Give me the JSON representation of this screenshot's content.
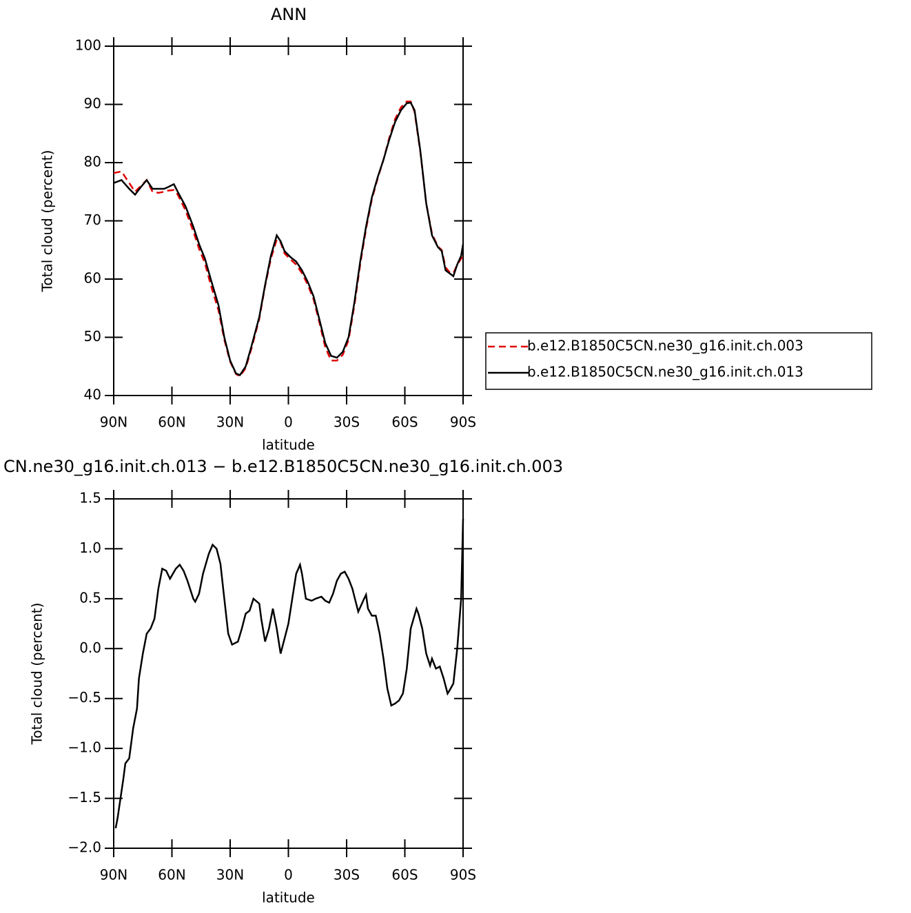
{
  "chart_data": [
    {
      "type": "line",
      "title": "ANN",
      "xlabel": "latitude",
      "ylabel": "Total cloud (percent)",
      "x": [
        90,
        86,
        82,
        79,
        76,
        73,
        70,
        67,
        64,
        62,
        59,
        57,
        53,
        49,
        46,
        43,
        40,
        36,
        33,
        30,
        27,
        25,
        22,
        19,
        15,
        12,
        9,
        6,
        4,
        2,
        -1,
        -4,
        -7,
        -10,
        -13,
        -16,
        -19,
        -22,
        -25,
        -28,
        -31,
        -34,
        -37,
        -40,
        -43,
        -46,
        -49,
        -52,
        -55,
        -58,
        -61,
        -63,
        -65,
        -68,
        -71,
        -74,
        -77,
        -79,
        -81,
        -83,
        -85,
        -87,
        -89,
        -90
      ],
      "series": [
        {
          "name": "b.e12.B1850C5CN.ne30_g16.init.ch.003",
          "color": "#e00000",
          "dash": true,
          "values": [
            78.2,
            78.5,
            76.5,
            75,
            76,
            77,
            75,
            74.8,
            75,
            75.2,
            75.3,
            74.5,
            71.8,
            68.2,
            65.2,
            62.7,
            59,
            54.6,
            49.6,
            45.8,
            43.7,
            43.3,
            44.7,
            48.1,
            53.2,
            58.8,
            63.5,
            66.8,
            66.3,
            64.4,
            63.4,
            62.5,
            61,
            59,
            56.5,
            52.5,
            48.3,
            46,
            46,
            47,
            49.5,
            55.5,
            62.5,
            68.6,
            73.7,
            77.3,
            80.5,
            84.3,
            87.5,
            89.5,
            90.5,
            90.5,
            88.7,
            81.8,
            73,
            67.8,
            65.6,
            65,
            62,
            61.2,
            61,
            62.5,
            63.5,
            64
          ]
        },
        {
          "name": "b.e12.B1850C5CN.ne30_g16.init.ch.013",
          "color": "#000000",
          "dash": false,
          "values": [
            76.5,
            77,
            75.5,
            74.5,
            75.8,
            77,
            75.5,
            75.5,
            75.5,
            75.8,
            76.3,
            75,
            72.5,
            69,
            66,
            63.5,
            60,
            55.5,
            50,
            46,
            43.8,
            43.5,
            45,
            48.5,
            53.5,
            59,
            64,
            67.5,
            66.5,
            64.8,
            63.8,
            63,
            61.5,
            59.5,
            57,
            53,
            49,
            46.8,
            46.5,
            47.5,
            50,
            56,
            63,
            69,
            74,
            77.5,
            80.5,
            84,
            87,
            89,
            90.2,
            90.3,
            89,
            82,
            73,
            67.5,
            65.5,
            64.8,
            61.5,
            61,
            60.5,
            62.5,
            64,
            66
          ]
        }
      ],
      "xlim": [
        90,
        -90
      ],
      "xticks": [
        {
          "value": 90,
          "label": "90N"
        },
        {
          "value": 60,
          "label": "60N"
        },
        {
          "value": 30,
          "label": "30N"
        },
        0,
        {
          "value": -30,
          "label": "30S"
        },
        {
          "value": -60,
          "label": "60S"
        },
        {
          "value": -90,
          "label": "90S"
        }
      ],
      "ylim": [
        40,
        100
      ],
      "yticks": [
        40,
        50,
        60,
        70,
        80,
        90,
        100
      ],
      "legend": "right"
    },
    {
      "type": "line",
      "title": "CN.ne30_g16.init.ch.013 − b.e12.B1850C5CN.ne30_g16.init.ch.003",
      "xlabel": "latitude",
      "ylabel": "Total cloud (percent)",
      "x": [
        89,
        88,
        85,
        84,
        82,
        80,
        78,
        77,
        75,
        73,
        71,
        69,
        67,
        65,
        63,
        61,
        58,
        56,
        54,
        52,
        49,
        48,
        46,
        44,
        41,
        39,
        37,
        35,
        33,
        31,
        29,
        26,
        24,
        22,
        20,
        18,
        15,
        14,
        12,
        10,
        8,
        6,
        4,
        2,
        0,
        -2,
        -4,
        -6,
        -7,
        -9,
        -12,
        -14,
        -17,
        -19,
        -21,
        -23,
        -25,
        -27,
        -29,
        -31,
        -33,
        -34,
        -36,
        -39,
        -40,
        -41,
        -43,
        -45,
        -47,
        -49,
        -51,
        -53,
        -55,
        -57,
        -59,
        -61,
        -63,
        -66,
        -67,
        -69,
        -71,
        -73,
        -74,
        -76,
        -78,
        -80,
        -82,
        -83,
        -85,
        -87,
        -89,
        -90
      ],
      "values": [
        -1.8,
        -1.7,
        -1.3,
        -1.15,
        -1.1,
        -0.8,
        -0.6,
        -0.3,
        -0.05,
        0.15,
        0.2,
        0.3,
        0.6,
        0.8,
        0.78,
        0.7,
        0.8,
        0.84,
        0.78,
        0.68,
        0.5,
        0.47,
        0.55,
        0.75,
        0.95,
        1.04,
        1.0,
        0.85,
        0.5,
        0.15,
        0.04,
        0.07,
        0.2,
        0.35,
        0.38,
        0.5,
        0.45,
        0.3,
        0.07,
        0.2,
        0.4,
        0.2,
        -0.05,
        0.1,
        0.25,
        0.5,
        0.75,
        0.84,
        0.75,
        0.5,
        0.48,
        0.5,
        0.52,
        0.48,
        0.46,
        0.55,
        0.68,
        0.75,
        0.77,
        0.7,
        0.6,
        0.52,
        0.37,
        0.5,
        0.54,
        0.4,
        0.33,
        0.33,
        0.15,
        -0.1,
        -0.4,
        -0.57,
        -0.55,
        -0.52,
        -0.45,
        -0.2,
        0.2,
        0.4,
        0.35,
        0.2,
        -0.05,
        -0.17,
        -0.1,
        -0.2,
        -0.18,
        -0.3,
        -0.45,
        -0.42,
        -0.35,
        0.0,
        0.5,
        1.3
      ],
      "color": "#000000",
      "xlim": [
        90,
        -90
      ],
      "xticks": [
        {
          "value": 90,
          "label": "90N"
        },
        {
          "value": 60,
          "label": "60N"
        },
        {
          "value": 30,
          "label": "30N"
        },
        0,
        {
          "value": -30,
          "label": "30S"
        },
        {
          "value": -60,
          "label": "60S"
        },
        {
          "value": -90,
          "label": "90S"
        }
      ],
      "ylim": [
        -2.0,
        1.5
      ],
      "yticks": [
        {
          "value": -2.0,
          "label": "−2.0"
        },
        {
          "value": -1.5,
          "label": "−1.5"
        },
        {
          "value": -1.0,
          "label": "−1.0"
        },
        {
          "value": -0.5,
          "label": "−0.5"
        },
        {
          "value": 0.0,
          "label": "0.0"
        },
        {
          "value": 0.5,
          "label": "0.5"
        },
        {
          "value": 1.0,
          "label": "1.0"
        },
        {
          "value": 1.5,
          "label": "1.5"
        }
      ]
    }
  ]
}
